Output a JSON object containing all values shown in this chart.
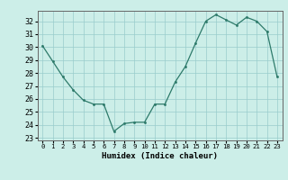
{
  "x": [
    0,
    1,
    2,
    3,
    4,
    5,
    6,
    7,
    8,
    9,
    10,
    11,
    12,
    13,
    14,
    15,
    16,
    17,
    18,
    19,
    20,
    21,
    22,
    23
  ],
  "y": [
    30.1,
    28.9,
    27.7,
    26.7,
    25.9,
    25.6,
    25.6,
    23.5,
    24.1,
    24.2,
    24.2,
    25.6,
    25.6,
    27.3,
    28.5,
    30.3,
    32.0,
    32.5,
    32.1,
    31.7,
    32.3,
    32.0,
    31.2,
    27.7
  ],
  "xlabel": "Humidex (Indice chaleur)",
  "xlim": [
    -0.5,
    23.5
  ],
  "ylim": [
    22.8,
    32.8
  ],
  "yticks": [
    23,
    24,
    25,
    26,
    27,
    28,
    29,
    30,
    31,
    32
  ],
  "xticks": [
    0,
    1,
    2,
    3,
    4,
    5,
    6,
    7,
    8,
    9,
    10,
    11,
    12,
    13,
    14,
    15,
    16,
    17,
    18,
    19,
    20,
    21,
    22,
    23
  ],
  "line_color": "#2d7a6a",
  "bg_color": "#cceee8",
  "grid_color": "#99cccc",
  "spine_color": "#666666"
}
